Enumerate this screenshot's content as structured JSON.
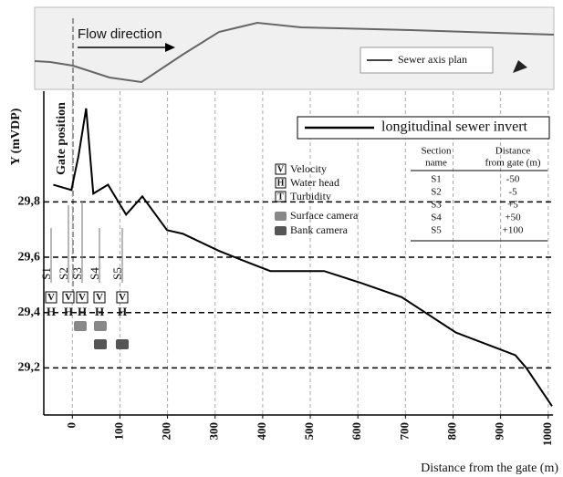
{
  "inset": {
    "flow_label": "Flow direction",
    "legend": "Sewer axis plan"
  },
  "gate_label": "Gate position",
  "symbols": [
    {
      "symbol": "V",
      "label": "Velocity"
    },
    {
      "symbol": "H",
      "label": "Water head"
    },
    {
      "symbol": "T",
      "label": "Turbidity"
    },
    {
      "label": "Surface camera"
    },
    {
      "label": "Bank camera"
    }
  ],
  "sections": {
    "headers": [
      [
        "Section",
        "name"
      ],
      [
        "Distance",
        "from gate (m)"
      ]
    ],
    "rows": [
      [
        "S1",
        "-50"
      ],
      [
        "S2",
        "-5"
      ],
      [
        "S3",
        "+5"
      ],
      [
        "S4",
        "+50"
      ],
      [
        "S5",
        "+100"
      ]
    ]
  },
  "chart_data": {
    "type": "line",
    "x_label": "Distance from the gate (m)",
    "y_label": "Y (mVDP)",
    "x": [
      -40,
      -2,
      13,
      29,
      44,
      75,
      113,
      147,
      199,
      232,
      308,
      356,
      416,
      529,
      605,
      692,
      806,
      931,
      954,
      1008
    ],
    "series": [
      {
        "name": "longitudinal sewer invert",
        "color": "#000000",
        "values": [
          29.862,
          29.843,
          29.967,
          30.138,
          29.83,
          29.862,
          29.754,
          29.82,
          29.698,
          29.685,
          29.623,
          29.59,
          29.55,
          29.55,
          29.508,
          29.456,
          29.328,
          29.246,
          29.2,
          29.062
        ]
      }
    ],
    "xlim": [
      -60,
      1010
    ],
    "ylim": [
      29.03,
      30.2
    ],
    "xticks": [
      0,
      100,
      200,
      300,
      400,
      500,
      600,
      700,
      800,
      900,
      1000
    ],
    "yticks": [
      {
        "value": 29.2,
        "label": "29,2"
      },
      {
        "value": 29.4,
        "label": "29,4"
      },
      {
        "value": 29.6,
        "label": "29,6"
      },
      {
        "value": 29.8,
        "label": "29,8"
      }
    ],
    "grid": true
  }
}
